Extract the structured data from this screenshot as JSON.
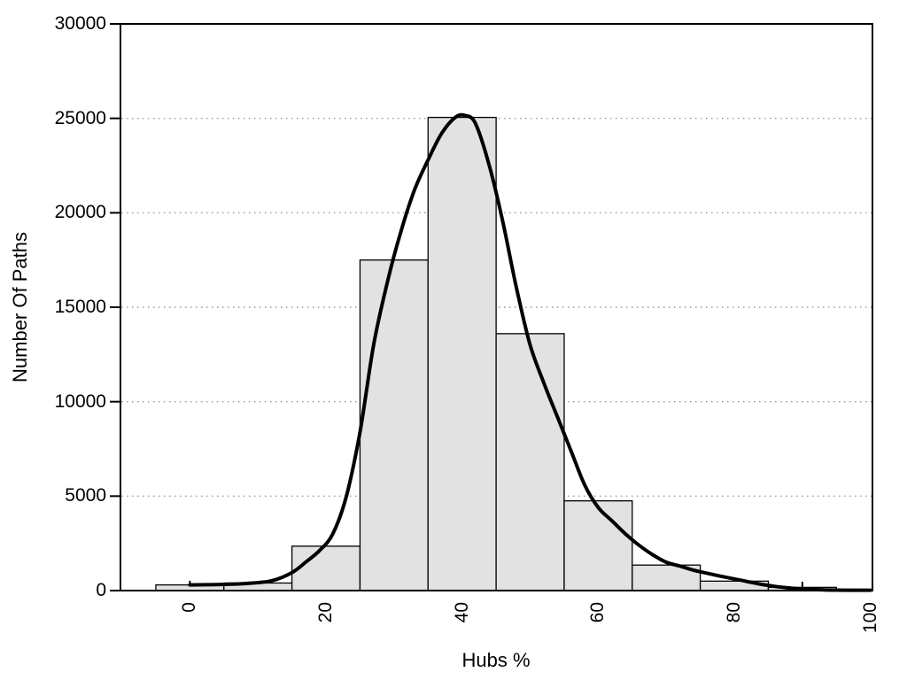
{
  "chart_data": {
    "type": "bar",
    "subtype": "histogram_with_smoothed_curve",
    "title": "",
    "xlabel": "Hubs %",
    "ylabel": "Number Of Paths",
    "xlim": [
      -10.2,
      100.3
    ],
    "ylim": [
      0,
      30000
    ],
    "x_ticks": [
      0,
      20,
      40,
      60,
      80,
      100
    ],
    "y_ticks": [
      0,
      5000,
      10000,
      15000,
      20000,
      25000,
      30000
    ],
    "grid": {
      "horizontal": true,
      "style": "dotted",
      "at": [
        5000,
        10000,
        15000,
        20000,
        25000
      ]
    },
    "legend": null,
    "bars": {
      "bin_width": 10,
      "centers": [
        0,
        10,
        20,
        30,
        40,
        50,
        60,
        70,
        80,
        90
      ],
      "values": [
        300,
        400,
        2350,
        17500,
        25050,
        13600,
        4750,
        1350,
        500,
        170
      ]
    },
    "series": [
      {
        "name": "smoothed-path-distribution-curve",
        "type": "line",
        "points": [
          [
            0,
            300
          ],
          [
            4,
            320
          ],
          [
            8,
            370
          ],
          [
            12,
            520
          ],
          [
            15,
            950
          ],
          [
            17,
            1500
          ],
          [
            19,
            2100
          ],
          [
            21,
            3000
          ],
          [
            23,
            5000
          ],
          [
            25,
            8400
          ],
          [
            27,
            13000
          ],
          [
            29,
            16300
          ],
          [
            31,
            19000
          ],
          [
            33,
            21200
          ],
          [
            35,
            22800
          ],
          [
            37,
            24200
          ],
          [
            39,
            25050
          ],
          [
            40.5,
            25150
          ],
          [
            42,
            24700
          ],
          [
            44,
            22500
          ],
          [
            46,
            19500
          ],
          [
            48,
            16000
          ],
          [
            50,
            13000
          ],
          [
            52,
            11000
          ],
          [
            54,
            9200
          ],
          [
            56,
            7400
          ],
          [
            58,
            5600
          ],
          [
            60,
            4400
          ],
          [
            62,
            3700
          ],
          [
            64,
            3000
          ],
          [
            66,
            2400
          ],
          [
            68,
            1900
          ],
          [
            70,
            1500
          ],
          [
            72,
            1300
          ],
          [
            74,
            1080
          ],
          [
            76,
            920
          ],
          [
            78,
            760
          ],
          [
            80,
            620
          ],
          [
            82,
            470
          ],
          [
            84,
            330
          ],
          [
            86,
            220
          ],
          [
            88,
            140
          ],
          [
            90,
            80
          ],
          [
            92,
            45
          ],
          [
            95,
            25
          ],
          [
            100,
            20
          ]
        ]
      }
    ],
    "end_marks": [
      {
        "x": 0,
        "v0": 230,
        "v1": 520
      },
      {
        "x": 90,
        "v0": 140,
        "v1": 470
      }
    ],
    "colors": {
      "background": "#ffffff",
      "bar_fill": "#e2e2e2",
      "bar_stroke": "#000000",
      "curve": "#000000",
      "grid": "#9a9a9a",
      "axis": "#000000",
      "text": "#000000"
    }
  }
}
